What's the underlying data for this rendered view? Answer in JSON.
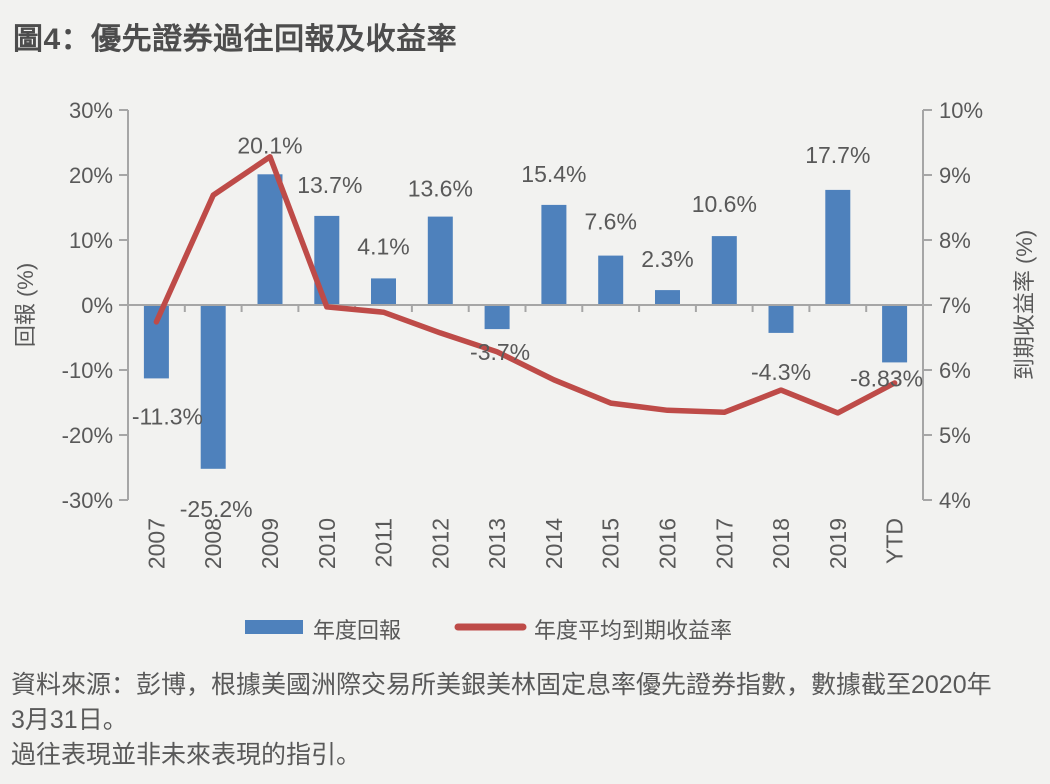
{
  "header": {
    "title": "圖4：優先證券過往回報及收益率"
  },
  "colors": {
    "background": "#f2f2f0",
    "bar_blue": "#4e81bc",
    "line_red": "#be4b48",
    "text_gray": "#595959",
    "axis_gray": "#a6a6a6"
  },
  "chart_data": {
    "type": "bar",
    "subtype": "combo bar + line, dual y-axis",
    "title": "圖4：優先證券過往回報及收益率",
    "categories": [
      "2007",
      "2008",
      "2009",
      "2010",
      "2011",
      "2012",
      "2013",
      "2014",
      "2015",
      "2016",
      "2017",
      "2018",
      "2019",
      "YTD"
    ],
    "series": [
      {
        "name": "年度回報",
        "type": "bar",
        "axis": "left",
        "color": "#4e81bc",
        "values": [
          -11.3,
          -25.2,
          20.1,
          13.7,
          4.1,
          13.6,
          -3.7,
          15.4,
          7.6,
          2.3,
          10.6,
          -4.3,
          17.7,
          -8.83
        ],
        "labels": [
          "-11.3%",
          "-25.2%",
          "20.1%",
          "13.7%",
          "4.1%",
          "13.6%",
          "-3.7%",
          "15.4%",
          "7.6%",
          "2.3%",
          "10.6%",
          "-4.3%",
          "17.7%",
          "-8.83%"
        ]
      },
      {
        "name": "年度平均到期收益率",
        "type": "line",
        "axis": "right",
        "color": "#be4b48",
        "values": [
          6.74,
          8.69,
          9.28,
          6.97,
          6.89,
          6.57,
          6.28,
          5.85,
          5.49,
          5.38,
          5.35,
          5.69,
          5.34,
          5.8
        ]
      }
    ],
    "left_axis": {
      "label": "回報 (%)",
      "min": -30,
      "max": 30,
      "tick_values": [
        30,
        20,
        10,
        0,
        -10,
        -20,
        -30
      ],
      "tick_labels": [
        "30%",
        "20%",
        "10%",
        "0%",
        "-10%",
        "-20%",
        "-30%"
      ]
    },
    "right_axis": {
      "label": "到期收益率 (%)",
      "min": 4,
      "max": 10,
      "tick_values": [
        10,
        9,
        8,
        7,
        6,
        5,
        4
      ],
      "tick_labels": [
        "10%",
        "9%",
        "8%",
        "7%",
        "6%",
        "5%",
        "4%"
      ]
    },
    "grid": false,
    "legend_position": "bottom",
    "label_layout": {
      "dx": [
        11,
        3,
        0,
        3,
        0,
        0,
        3,
        0,
        0,
        0,
        0,
        0,
        0,
        -8
      ],
      "dy": [
        46,
        48,
        -21,
        -23,
        -24,
        -20,
        31,
        -23,
        -26,
        -23,
        -24,
        47,
        -27,
        24
      ]
    }
  },
  "legend": {
    "items": [
      {
        "label": "年度回報",
        "swatch": "bar"
      },
      {
        "label": "年度平均到期收益率",
        "swatch": "line"
      }
    ]
  },
  "source": {
    "lines": [
      "資料來源：彭博，根據美國洲際交易所美銀美林固定息率優先證券指數，數據截至2020年",
      "3月31日。",
      "過往表現並非未來表現的指引。"
    ]
  }
}
